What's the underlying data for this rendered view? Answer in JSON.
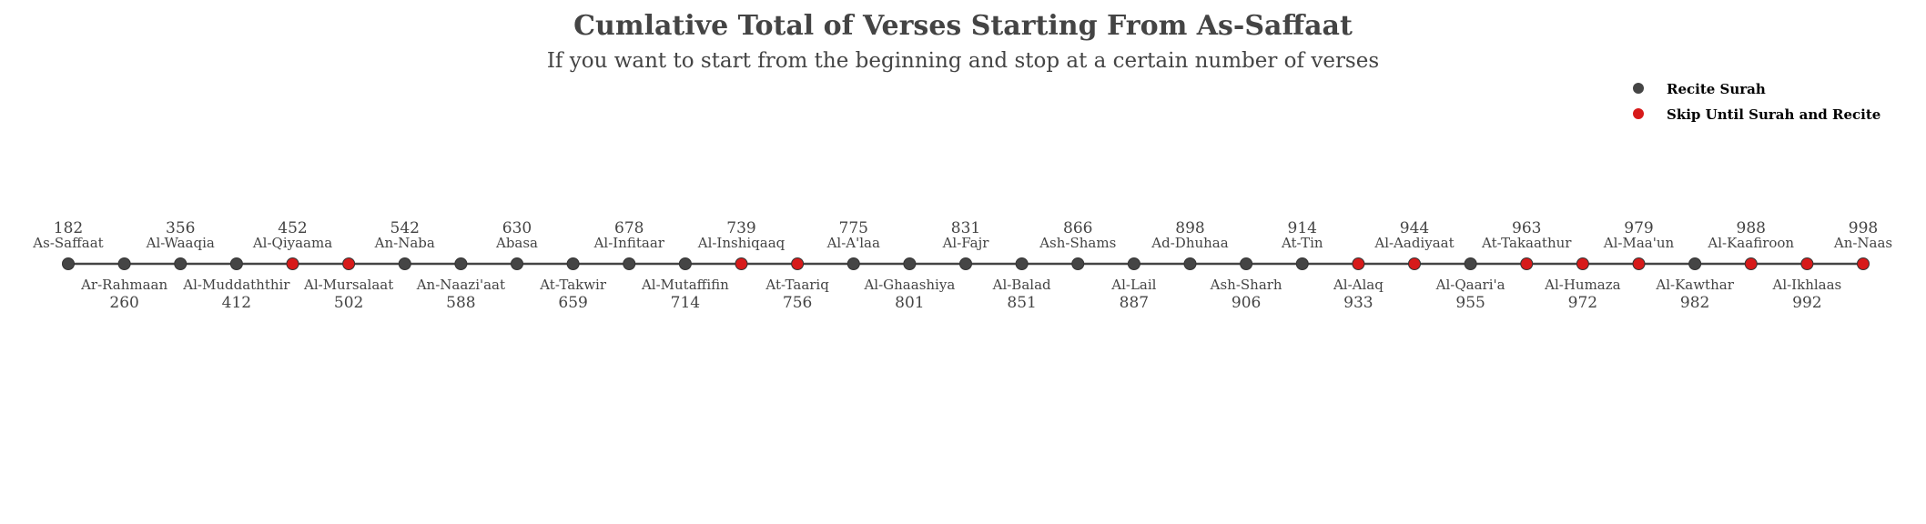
{
  "chart_data": {
    "type": "scatter",
    "title": "Cumlative Total of Verses Starting From As-Saffaat",
    "subtitle": "If you want to start from the beginning and stop at a certain number of verses",
    "legend": {
      "placement": "top-right",
      "items": [
        {
          "label": "Recite Surah",
          "color": "#454545"
        },
        {
          "label": "Skip Until Surah and Recite",
          "color": "#d71a1a"
        }
      ]
    },
    "grid": false,
    "line_color": "#454545",
    "points": [
      {
        "surah": "As-Saffaat",
        "cumulative": 182,
        "category": "recite"
      },
      {
        "surah": "Ar-Rahmaan",
        "cumulative": 260,
        "category": "recite"
      },
      {
        "surah": "Al-Waaqia",
        "cumulative": 356,
        "category": "recite"
      },
      {
        "surah": "Al-Muddaththir",
        "cumulative": 412,
        "category": "recite"
      },
      {
        "surah": "Al-Qiyaama",
        "cumulative": 452,
        "category": "skip"
      },
      {
        "surah": "Al-Mursalaat",
        "cumulative": 502,
        "category": "skip"
      },
      {
        "surah": "An-Naba",
        "cumulative": 542,
        "category": "recite"
      },
      {
        "surah": "An-Naazi'aat",
        "cumulative": 588,
        "category": "recite"
      },
      {
        "surah": "Abasa",
        "cumulative": 630,
        "category": "recite"
      },
      {
        "surah": "At-Takwir",
        "cumulative": 659,
        "category": "recite"
      },
      {
        "surah": "Al-Infitaar",
        "cumulative": 678,
        "category": "recite"
      },
      {
        "surah": "Al-Mutaffifin",
        "cumulative": 714,
        "category": "recite"
      },
      {
        "surah": "Al-Inshiqaaq",
        "cumulative": 739,
        "category": "skip"
      },
      {
        "surah": "At-Taariq",
        "cumulative": 756,
        "category": "skip"
      },
      {
        "surah": "Al-A'laa",
        "cumulative": 775,
        "category": "recite"
      },
      {
        "surah": "Al-Ghaashiya",
        "cumulative": 801,
        "category": "recite"
      },
      {
        "surah": "Al-Fajr",
        "cumulative": 831,
        "category": "recite"
      },
      {
        "surah": "Al-Balad",
        "cumulative": 851,
        "category": "recite"
      },
      {
        "surah": "Ash-Shams",
        "cumulative": 866,
        "category": "recite"
      },
      {
        "surah": "Al-Lail",
        "cumulative": 887,
        "category": "recite"
      },
      {
        "surah": "Ad-Dhuhaa",
        "cumulative": 898,
        "category": "recite"
      },
      {
        "surah": "Ash-Sharh",
        "cumulative": 906,
        "category": "recite"
      },
      {
        "surah": "At-Tin",
        "cumulative": 914,
        "category": "recite"
      },
      {
        "surah": "Al-Alaq",
        "cumulative": 933,
        "category": "skip"
      },
      {
        "surah": "Al-Aadiyaat",
        "cumulative": 944,
        "category": "skip"
      },
      {
        "surah": "Al-Qaari'a",
        "cumulative": 955,
        "category": "recite"
      },
      {
        "surah": "At-Takaathur",
        "cumulative": 963,
        "category": "skip"
      },
      {
        "surah": "Al-Humaza",
        "cumulative": 972,
        "category": "skip"
      },
      {
        "surah": "Al-Maa'un",
        "cumulative": 979,
        "category": "skip"
      },
      {
        "surah": "Al-Kawthar",
        "cumulative": 982,
        "category": "recite"
      },
      {
        "surah": "Al-Kaafiroon",
        "cumulative": 988,
        "category": "skip"
      },
      {
        "surah": "Al-Ikhlaas",
        "cumulative": 992,
        "category": "skip"
      },
      {
        "surah": "An-Naas",
        "cumulative": 998,
        "category": "skip"
      }
    ]
  }
}
